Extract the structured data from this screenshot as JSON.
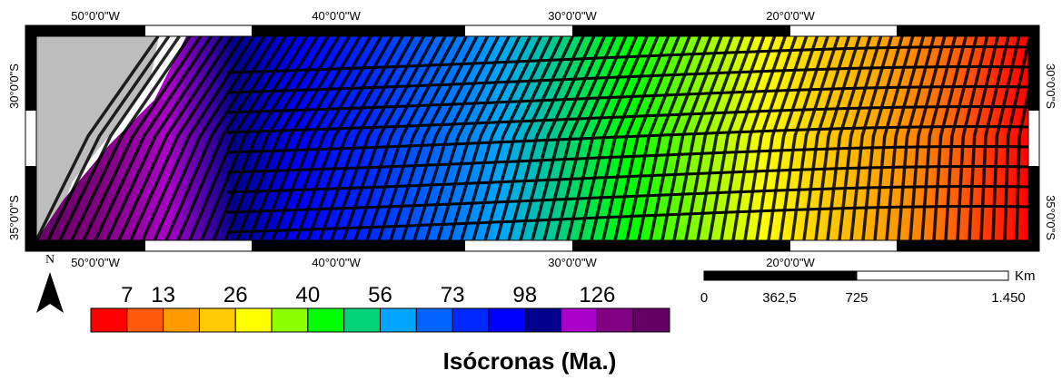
{
  "map": {
    "top_ticks": [
      "50°0'0\"W",
      "40°0'0\"W",
      "30°0'0\"W",
      "20°0'0\"W"
    ],
    "bottom_ticks": [
      "50°0'0\"W",
      "40°0'0\"W",
      "30°0'0\"W",
      "20°0'0\"W"
    ],
    "left_ticks": [
      "30°0'0\"S",
      "35°0'0\"S"
    ],
    "right_ticks": [
      "30°0'0\"S",
      "35°0'0\"S"
    ]
  },
  "north": "N",
  "legend": {
    "labels": [
      "7",
      "13",
      "26",
      "40",
      "56",
      "73",
      "98",
      "126"
    ],
    "colors": [
      "#ff0000",
      "#ff5a0a",
      "#ff9a00",
      "#ffc800",
      "#ffff00",
      "#8cff00",
      "#00ff00",
      "#00d27a",
      "#00a5ff",
      "#0064ff",
      "#0028ff",
      "#0000ff",
      "#00008c",
      "#aa00c8",
      "#820082",
      "#640064"
    ],
    "title": "Isócronas  (Ma.)"
  },
  "scale_bar": {
    "labels": [
      "0",
      "362,5",
      "725",
      "1.450"
    ],
    "unit": "Km"
  }
}
